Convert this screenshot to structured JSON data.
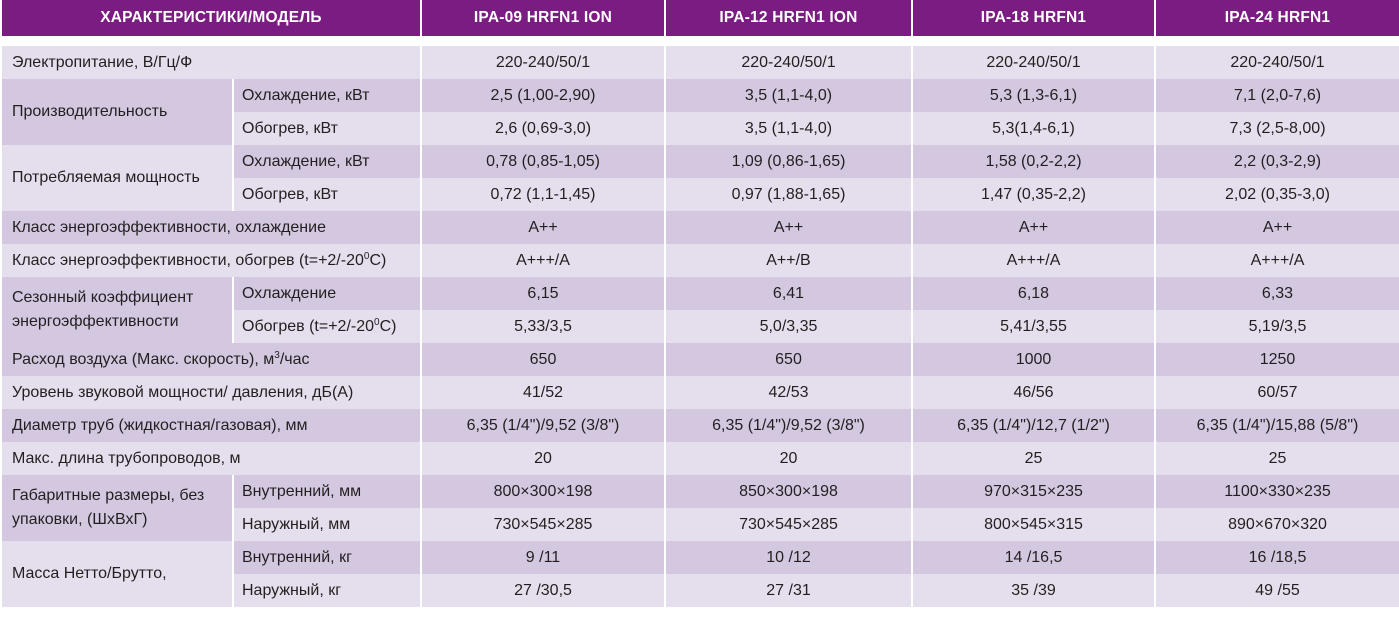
{
  "header": {
    "characteristic": "ХАРАКТЕРИСТИКИ/МОДЕЛЬ",
    "models": [
      "IPA-09 HRFN1 ION",
      "IPA-12 HRFN1 ION",
      "IPA-18 HRFN1",
      "IPA-24 HRFN1"
    ]
  },
  "rows": {
    "power_supply": {
      "label": "Электропитание, В/Гц/Ф",
      "values": [
        "220-240/50/1",
        "220-240/50/1",
        "220-240/50/1",
        "220-240/50/1"
      ]
    },
    "capacity": {
      "label": "Производительность",
      "cooling": {
        "label": "Охлаждение, кВт",
        "values": [
          "2,5 (1,00-2,90)",
          "3,5 (1,1-4,0)",
          "5,3 (1,3-6,1)",
          "7,1 (2,0-7,6)"
        ]
      },
      "heating": {
        "label": "Обогрев, кВт",
        "values": [
          "2,6 (0,69-3,0)",
          "3,5 (1,1-4,0)",
          "5,3(1,4-6,1)",
          "7,3 (2,5-8,00)"
        ]
      }
    },
    "consumption": {
      "label": "Потребляемая мощность",
      "cooling": {
        "label": "Охлаждение, кВт",
        "values": [
          "0,78 (0,85-1,05)",
          "1,09 (0,86-1,65)",
          "1,58 (0,2-2,2)",
          "2,2 (0,3-2,9)"
        ]
      },
      "heating": {
        "label": "Обогрев, кВт",
        "values": [
          "0,72 (1,1-1,45)",
          "0,97 (1,88-1,65)",
          "1,47 (0,35-2,2)",
          "2,02 (0,35-3,0)"
        ]
      }
    },
    "energy_class_cooling": {
      "label": "Класс энергоэффективности, охлаждение",
      "values": [
        "A++",
        "A++",
        "A++",
        "A++"
      ]
    },
    "energy_class_heating": {
      "label_pre": "Класс энергоэффективности, обогрев (t=+2/-20",
      "label_sup": "0",
      "label_post": "C)",
      "values": [
        "A+++/A",
        "A++/B",
        "A+++/A",
        "A+++/A"
      ]
    },
    "seasonal": {
      "label": "Сезонный коэффициент энергоэффективности",
      "cooling": {
        "label": "Охлаждение",
        "values": [
          "6,15",
          "6,41",
          "6,18",
          "6,33"
        ]
      },
      "heating": {
        "label_pre": "Обогрев (t=+2/-20",
        "label_sup": "0",
        "label_post": "C)",
        "values": [
          "5,33/3,5",
          "5,0/3,35",
          "5,41/3,55",
          "5,19/3,5"
        ]
      }
    },
    "airflow": {
      "label_pre": "Расход воздуха (Макс. скорость), м",
      "label_sup": "3",
      "label_post": "/час",
      "values": [
        "650",
        "650",
        "1000",
        "1250"
      ]
    },
    "noise": {
      "label": "Уровень звуковой мощности/ давления, дБ(А)",
      "values": [
        "41/52",
        "42/53",
        "46/56",
        "60/57"
      ]
    },
    "pipes": {
      "label": "Диаметр труб (жидкостная/газовая), мм",
      "values": [
        "6,35 (1/4\")/9,52 (3/8\")",
        "6,35 (1/4\")/9,52 (3/8\")",
        "6,35 (1/4\")/12,7 (1/2\")",
        "6,35 (1/4\")/15,88 (5/8\")"
      ]
    },
    "pipe_length": {
      "label": "Макс. длина трубопроводов, м",
      "values": [
        "20",
        "20",
        "25",
        "25"
      ]
    },
    "dimensions": {
      "label": "Габаритные размеры, без упаковки, (ШхВхГ)",
      "indoor": {
        "label": "Внутренний, мм",
        "values": [
          "800×300×198",
          "850×300×198",
          "970×315×235",
          "1100×330×235"
        ]
      },
      "outdoor": {
        "label": "Наружный, мм",
        "values": [
          "730×545×285",
          "730×545×285",
          "800×545×315",
          "890×670×320"
        ]
      }
    },
    "weight": {
      "label": "Масса Нетто/Брутто,",
      "indoor": {
        "label": "Внутренний, кг",
        "values": [
          "9 /11",
          "10 /12",
          "14 /16,5",
          "16 /18,5"
        ]
      },
      "outdoor": {
        "label": "Наружный, кг",
        "values": [
          "27 /30,5",
          "27 /31",
          "35 /39",
          "49 /55"
        ]
      }
    }
  },
  "colors": {
    "header_bg": "#7a1c81",
    "row_light": "#e5dfed",
    "row_dark": "#d3c8e0"
  }
}
